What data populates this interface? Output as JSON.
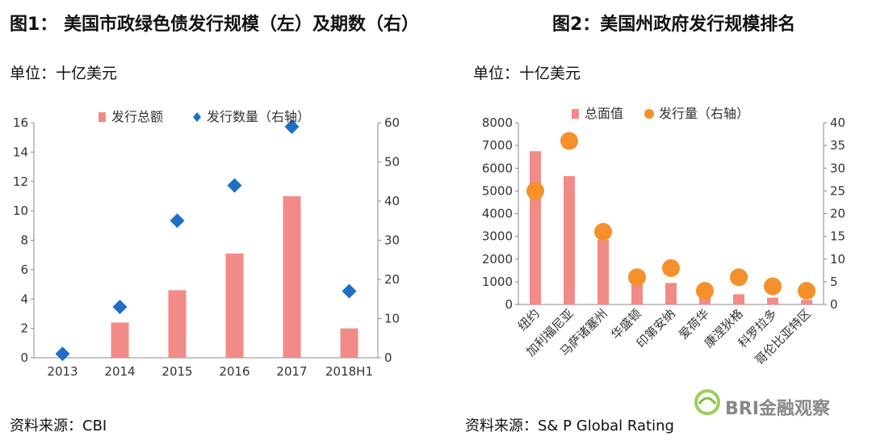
{
  "figure1": {
    "title": "图1： 美国市政绿色债发行规模（左）及期数（右）",
    "unit": "单位：十亿美元",
    "source": "资料来源：CBI"
  },
  "figure2": {
    "title": "图2：美国州政府发行规模排名",
    "unit": "单位：十亿美元",
    "source": "资料来源：S& P Global Rating"
  },
  "watermark": {
    "text": "BRI金融观察"
  },
  "colors": {
    "bar": "#f28b87",
    "marker1": "#1f6fc5",
    "marker2": "#f5902a"
  },
  "chart_data": [
    {
      "type": "bar",
      "categories": [
        "2013",
        "2014",
        "2015",
        "2016",
        "2017",
        "2018H1"
      ],
      "series": [
        {
          "name": "发行总额",
          "axis": "left",
          "kind": "bar",
          "values": [
            0,
            2.4,
            4.6,
            7.1,
            11.0,
            2.0
          ]
        },
        {
          "name": "发行数量（右轴）",
          "axis": "right",
          "kind": "diamond",
          "values": [
            1,
            13,
            35,
            44,
            59,
            17
          ]
        }
      ],
      "yticks_left": [
        "0",
        "2",
        "4",
        "6",
        "8",
        "10",
        "12",
        "14",
        "16"
      ],
      "ylim_left": [
        0,
        16
      ],
      "yticks_right": [
        "0",
        "10",
        "20",
        "30",
        "40",
        "50",
        "60"
      ],
      "ylim_right": [
        0,
        60
      ],
      "legend": "top",
      "grid": false
    },
    {
      "type": "bar",
      "categories": [
        "纽约",
        "加利福尼亚",
        "马萨诸塞州",
        "华盛顿",
        "印第安纳",
        "爱荷华",
        "康涅狄格",
        "科罗拉多",
        "哥伦比亚特区"
      ],
      "series": [
        {
          "name": "总面值",
          "axis": "left",
          "kind": "bar",
          "values": [
            6750,
            5650,
            2850,
            900,
            950,
            350,
            450,
            300,
            200
          ]
        },
        {
          "name": "发行量（右轴）",
          "axis": "right",
          "kind": "circle",
          "values": [
            25,
            36,
            16,
            6,
            8,
            3,
            6,
            4,
            3
          ]
        }
      ],
      "yticks_left": [
        "0",
        "1000",
        "2000",
        "3000",
        "4000",
        "5000",
        "6000",
        "7000",
        "8000"
      ],
      "ylim_left": [
        0,
        8000
      ],
      "yticks_right": [
        "0",
        "5",
        "10",
        "15",
        "20",
        "25",
        "30",
        "35",
        "40"
      ],
      "ylim_right": [
        0,
        40
      ],
      "legend": "top",
      "grid": false
    }
  ]
}
